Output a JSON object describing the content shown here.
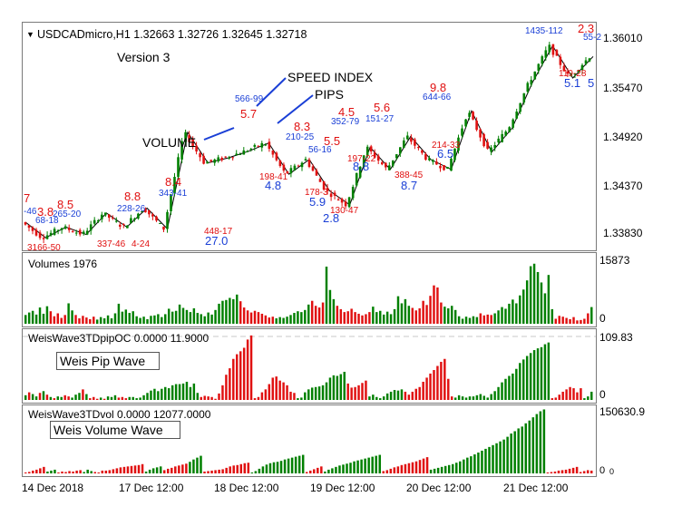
{
  "header": {
    "symbol_line": "USDCADmicro,H1  1.32663 1.32726 1.32645 1.32718",
    "version": "Version 3"
  },
  "annotations": {
    "speed_index": "SPEED INDEX",
    "pips": "PIPS",
    "volume": "VOLUME"
  },
  "colors": {
    "bull": "#008000",
    "bear": "#e01010",
    "pip_label": "#1a3fd6",
    "vol_label": "#1a3fd6",
    "speed_label": "#e01010",
    "zigzag": "#000000"
  },
  "chart_data": [
    {
      "type": "candlestick",
      "panel": "price",
      "ylim": [
        1.3355,
        1.3628
      ],
      "y_ticks": [
        "1.36010",
        "1.35470",
        "1.34920",
        "1.34370",
        "1.33830"
      ],
      "y_tick_values": [
        1.3601,
        1.3547,
        1.3492,
        1.3437,
        1.3383
      ],
      "zigzag": [
        1.3387,
        1.3368,
        1.3381,
        1.3372,
        1.3398,
        1.3381,
        1.3404,
        1.3379,
        1.3496,
        1.3459,
        1.3465,
        1.3473,
        1.3483,
        1.3445,
        1.3463,
        1.3425,
        1.3408,
        1.3478,
        1.3451,
        1.3491,
        1.3463,
        1.3451,
        1.3522,
        1.3472,
        1.3501,
        1.3556,
        1.3601,
        1.3562,
        1.3588
      ],
      "speed_labels": [
        "7",
        "3.8",
        "8.5",
        "8.8",
        "8.4",
        "5.7",
        "8.3",
        "5.5",
        "4.5",
        "5.6",
        "9.8",
        "2.3"
      ],
      "volume_labels": [
        "-46",
        "68-18",
        "265-20",
        "228-26",
        "343-41",
        "566-99",
        "210-25",
        "56-16",
        "352-79",
        "151-27",
        "644-66",
        "1435-112",
        "55-2",
        "337-46",
        "4-24",
        "448-17",
        "198-41",
        "178-3",
        "130-47",
        "197-22",
        "388-45",
        "214-33",
        "119-28",
        "3166-50"
      ],
      "pip_labels": [
        "27.0",
        "4.8",
        "5.9",
        "2.8",
        "8.8",
        "8.7",
        "6.5",
        "5.1",
        "5"
      ]
    },
    {
      "type": "bar",
      "panel": "volumes",
      "title": "Volumes 1976",
      "ylim": [
        0,
        15873
      ],
      "y_ticks": [
        "15873",
        "0"
      ],
      "values": [
        2100,
        2700,
        3100,
        2200,
        3900,
        2400,
        4200,
        3000,
        1800,
        2500,
        1400,
        2100,
        4900,
        3200,
        2100,
        1300,
        1900,
        1500,
        1100,
        1700,
        1000,
        1600,
        1300,
        2000,
        1300,
        2500,
        4800,
        2900,
        3400,
        2600,
        3000,
        1800,
        1400,
        1700,
        1100,
        1900,
        2000,
        2300,
        1600,
        2300,
        3600,
        2900,
        3100,
        4600,
        3800,
        3300,
        2800,
        3700,
        2600,
        2300,
        1800,
        2700,
        2200,
        3300,
        4800,
        5500,
        5700,
        6200,
        5900,
        7000,
        5400,
        3900,
        3200,
        2700,
        3100,
        2800,
        2400,
        2000,
        1500,
        1700,
        1300,
        1600,
        1400,
        1700,
        2100,
        2600,
        3000,
        2800,
        3300,
        4600,
        5500,
        4300,
        3900,
        5100,
        13700,
        8100,
        5900,
        4300,
        3500,
        2800,
        3000,
        3600,
        2800,
        2400,
        2000,
        2300,
        2800,
        4100,
        2800,
        3100,
        2200,
        2900,
        2300,
        3500,
        6600,
        4900,
        5900,
        4300,
        3800,
        3200,
        3700,
        5500,
        4500,
        6700,
        9200,
        8700,
        5100,
        4100,
        3700,
        4300,
        3300,
        1800,
        1200,
        1700,
        1400,
        1800,
        1600,
        2500,
        2000,
        2200,
        2100,
        2500,
        3200,
        4000,
        3600,
        4800,
        5800,
        4900,
        6800,
        8200,
        10400,
        13800,
        14400,
        12400,
        9900,
        7300,
        11700,
        3500,
        1200,
        1900,
        1700,
        1400,
        1100,
        1600,
        800,
        900,
        1200,
        2500,
        4000
      ],
      "up": [
        1,
        1,
        1,
        1,
        1,
        1,
        1,
        0,
        0,
        0,
        0,
        0,
        1,
        1,
        0,
        0,
        0,
        0,
        0,
        0,
        1,
        1,
        1,
        1,
        1,
        1,
        1,
        1,
        1,
        1,
        1,
        1,
        1,
        1,
        1,
        1,
        1,
        1,
        1,
        1,
        1,
        1,
        1,
        1,
        1,
        1,
        1,
        1,
        1,
        1,
        1,
        1,
        1,
        1,
        1,
        1,
        1,
        1,
        1,
        1,
        0,
        0,
        0,
        0,
        0,
        0,
        0,
        0,
        0,
        0,
        1,
        1,
        1,
        1,
        1,
        1,
        1,
        1,
        1,
        1,
        0,
        0,
        0,
        0,
        1,
        1,
        1,
        0,
        0,
        0,
        0,
        0,
        0,
        0,
        0,
        0,
        0,
        1,
        1,
        1,
        1,
        1,
        1,
        1,
        1,
        1,
        1,
        1,
        0,
        0,
        0,
        0,
        0,
        0,
        0,
        0,
        0,
        1,
        1,
        1,
        1,
        1,
        1,
        1,
        1,
        1,
        1,
        0,
        0,
        0,
        0,
        1,
        1,
        1,
        1,
        1,
        1,
        1,
        1,
        1,
        1,
        1,
        1,
        1,
        1,
        1,
        1,
        1,
        0,
        0,
        0,
        0,
        0,
        0,
        0,
        0,
        0,
        0,
        1,
        1,
        1
      ]
    },
    {
      "type": "bar",
      "panel": "weis-pip-wave",
      "title": "WeisWave3TDpipOC 0.0000 11.9000",
      "legend": "Weis Pip Wave",
      "ylim": [
        0,
        109.83
      ],
      "y_ticks": [
        "109.83",
        "0"
      ],
      "values": [
        8,
        13,
        10,
        6,
        12,
        15,
        9,
        5,
        3,
        6,
        5,
        8,
        6,
        4,
        9,
        12,
        18,
        10,
        3,
        5,
        2,
        4,
        2,
        6,
        5,
        8,
        4,
        5,
        3,
        5,
        5,
        3,
        4,
        8,
        12,
        16,
        19,
        15,
        19,
        22,
        20,
        25,
        27,
        27,
        28,
        31,
        22,
        28,
        12,
        5,
        7,
        6,
        5,
        2,
        11,
        25,
        43,
        54,
        70,
        78,
        83,
        89,
        103,
        110,
        3,
        5,
        13,
        18,
        27,
        38,
        40,
        33,
        30,
        25,
        14,
        12,
        3,
        4,
        13,
        18,
        21,
        22,
        23,
        25,
        30,
        38,
        42,
        41,
        44,
        48,
        28,
        21,
        22,
        25,
        29,
        33,
        6,
        9,
        5,
        3,
        6,
        11,
        14,
        17,
        16,
        18,
        14,
        9,
        14,
        19,
        22,
        31,
        38,
        45,
        51,
        58,
        65,
        70,
        36,
        6,
        4,
        8,
        6,
        4,
        6,
        6,
        8,
        10,
        7,
        4,
        10,
        15,
        22,
        30,
        36,
        41,
        45,
        53,
        63,
        69,
        75,
        80,
        85,
        88,
        90,
        95,
        98,
        3,
        4,
        9,
        14,
        18,
        22,
        20,
        13,
        20,
        3,
        6,
        14
      ],
      "up": [
        1,
        0,
        1,
        1,
        0,
        1,
        0,
        1,
        0,
        1,
        1,
        0,
        0,
        1,
        1,
        1,
        0,
        1,
        0,
        0,
        0,
        1,
        0,
        1,
        1,
        1,
        0,
        0,
        0,
        1,
        1,
        1,
        1,
        1,
        1,
        1,
        1,
        1,
        1,
        1,
        1,
        1,
        1,
        1,
        1,
        1,
        1,
        1,
        1,
        0,
        0,
        0,
        0,
        0,
        0,
        0,
        0,
        0,
        0,
        0,
        0,
        0,
        0,
        0,
        0,
        0,
        0,
        0,
        0,
        0,
        0,
        0,
        0,
        0,
        0,
        0,
        1,
        1,
        1,
        1,
        1,
        1,
        1,
        1,
        1,
        1,
        1,
        1,
        1,
        1,
        0,
        0,
        0,
        0,
        0,
        0,
        1,
        1,
        1,
        1,
        1,
        1,
        1,
        1,
        1,
        1,
        0,
        0,
        0,
        0,
        0,
        0,
        0,
        0,
        0,
        0,
        0,
        0,
        0,
        0,
        1,
        1,
        1,
        1,
        1,
        1,
        1,
        1,
        1,
        1,
        1,
        1,
        1,
        1,
        1,
        1,
        1,
        1,
        1,
        1,
        1,
        1,
        1,
        1,
        1,
        1,
        1,
        0,
        0,
        0,
        0,
        0,
        0,
        0,
        0,
        0,
        1,
        1,
        1
      ]
    },
    {
      "type": "bar",
      "panel": "weis-volume-wave",
      "title": "WeisWave3TDvol 0.0000 12077.0000",
      "legend": "Weis Volume Wave",
      "ylim": [
        0,
        150630.9
      ],
      "y_ticks": [
        "150630.9",
        "0",
        "0"
      ],
      "values": [
        2200,
        3500,
        6600,
        8800,
        12100,
        15400,
        4400,
        6600,
        8800,
        2200,
        4400,
        3300,
        5500,
        4400,
        6600,
        7700,
        3300,
        8800,
        5500,
        3300,
        2200,
        6600,
        6600,
        7700,
        9900,
        12100,
        14300,
        15400,
        16500,
        17600,
        18700,
        19800,
        22000,
        4400,
        8800,
        12100,
        14300,
        16500,
        7700,
        11000,
        13200,
        16500,
        18700,
        20900,
        23100,
        27500,
        33000,
        37400,
        41800,
        4400,
        5500,
        6600,
        7700,
        8800,
        9900,
        13200,
        16500,
        18700,
        19800,
        22000,
        24200,
        25300,
        2200,
        5500,
        11000,
        16500,
        20900,
        24200,
        26400,
        27500,
        29700,
        33000,
        35200,
        37400,
        39600,
        41800,
        44000,
        3300,
        6600,
        9900,
        13200,
        16500,
        4400,
        8800,
        12100,
        15400,
        18700,
        20900,
        23100,
        25300,
        28600,
        30800,
        33000,
        35200,
        37400,
        39600,
        41800,
        44000,
        5500,
        7700,
        11000,
        14300,
        16500,
        19800,
        22000,
        24200,
        26400,
        28600,
        31900,
        35200,
        38500,
        8800,
        11000,
        13200,
        15400,
        17600,
        19800,
        22000,
        25300,
        28600,
        33000,
        37400,
        40700,
        45100,
        49500,
        53900,
        58300,
        62700,
        67100,
        71500,
        75900,
        80300,
        86900,
        94600,
        100100,
        106700,
        111100,
        118800,
        125400,
        133100,
        140800,
        147400,
        151800,
        2200,
        3300,
        4400,
        6600,
        7700,
        8800,
        11000,
        13200,
        15400,
        3300,
        5500,
        7700,
        6600
      ],
      "up": [
        0,
        0,
        0,
        0,
        0,
        0,
        1,
        1,
        1,
        0,
        0,
        0,
        0,
        0,
        0,
        0,
        1,
        1,
        1,
        0,
        0,
        0,
        0,
        0,
        0,
        0,
        0,
        0,
        0,
        0,
        0,
        0,
        0,
        1,
        1,
        1,
        1,
        1,
        0,
        0,
        0,
        0,
        0,
        0,
        0,
        1,
        1,
        1,
        1,
        0,
        0,
        0,
        0,
        0,
        0,
        0,
        0,
        0,
        0,
        0,
        0,
        0,
        1,
        1,
        1,
        1,
        1,
        1,
        1,
        1,
        1,
        1,
        1,
        1,
        1,
        1,
        1,
        0,
        0,
        0,
        0,
        0,
        1,
        1,
        1,
        1,
        1,
        1,
        1,
        1,
        1,
        1,
        1,
        1,
        1,
        1,
        1,
        1,
        0,
        0,
        0,
        0,
        0,
        0,
        0,
        0,
        0,
        0,
        0,
        0,
        0,
        1,
        1,
        1,
        1,
        1,
        1,
        1,
        1,
        1,
        1,
        1,
        1,
        1,
        1,
        1,
        1,
        1,
        1,
        1,
        1,
        1,
        1,
        1,
        1,
        1,
        1,
        1,
        1,
        1,
        1,
        1,
        1,
        0,
        0,
        0,
        0,
        0,
        0,
        0,
        0,
        0,
        0,
        0,
        0,
        0
      ]
    },
    {
      "type": "axis",
      "panel": "time-axis",
      "x_ticks": [
        "14 Dec 2018",
        "17 Dec 12:00",
        "18 Dec 12:00",
        "19 Dec 12:00",
        "20 Dec 12:00",
        "21 Dec 12:00"
      ]
    }
  ]
}
